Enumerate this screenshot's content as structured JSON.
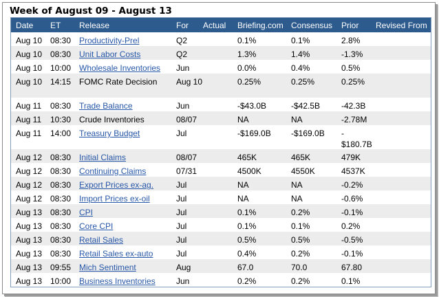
{
  "title": "Week of August 09 - August 13",
  "headers": {
    "date": "Date",
    "et": "ET",
    "release": "Release",
    "for": "For",
    "actual": "Actual",
    "briefing": "Briefing.com",
    "consensus": "Consensus",
    "prior": "Prior",
    "revised": "Revised From"
  },
  "rows": [
    {
      "date": "Aug 10",
      "et": "08:30",
      "release": "Productivity-Prel",
      "link": true,
      "for": "Q2",
      "actual": "",
      "briefing": "0.1%",
      "consensus": "0.1%",
      "prior": "2.8%",
      "revised": ""
    },
    {
      "date": "Aug 10",
      "et": "08:30",
      "release": "Unit Labor Costs",
      "link": true,
      "for": "Q2",
      "actual": "",
      "briefing": "1.3%",
      "consensus": "1.4%",
      "prior": "-1.3%",
      "revised": ""
    },
    {
      "date": "Aug 10",
      "et": "10:00",
      "release": "Wholesale Inventories",
      "link": true,
      "for": "Jun",
      "actual": "",
      "briefing": "0.0%",
      "consensus": "0.4%",
      "prior": "0.5%",
      "revised": ""
    },
    {
      "date": "Aug 10",
      "et": "14:15",
      "release": "FOMC Rate Decision",
      "link": false,
      "for": "Aug 10",
      "actual": "",
      "briefing": "0.25%",
      "consensus": "0.25%",
      "prior": "0.25%",
      "revised": ""
    },
    {
      "date": "Aug 11",
      "et": "08:30",
      "release": "Trade Balance",
      "link": true,
      "for": "Jun",
      "actual": "",
      "briefing": "-$43.0B",
      "consensus": "-$42.5B",
      "prior": "-42.3B",
      "revised": ""
    },
    {
      "date": "Aug 11",
      "et": "10:30",
      "release": "Crude Inventories",
      "link": false,
      "for": "08/07",
      "actual": "",
      "briefing": "NA",
      "consensus": "NA",
      "prior": "-2.78M",
      "revised": ""
    },
    {
      "date": "Aug 11",
      "et": "14:00",
      "release": "Treasury Budget",
      "link": true,
      "for": "Jul",
      "actual": "",
      "briefing": "-$169.0B",
      "consensus": "-$169.0B",
      "prior": "- $180.7B",
      "revised": ""
    },
    {
      "date": "Aug 12",
      "et": "08:30",
      "release": "Initial Claims",
      "link": true,
      "for": "08/07",
      "actual": "",
      "briefing": "465K",
      "consensus": "465K",
      "prior": "479K",
      "revised": ""
    },
    {
      "date": "Aug 12",
      "et": "08:30",
      "release": "Continuing Claims",
      "link": true,
      "for": "07/31",
      "actual": "",
      "briefing": "4500K",
      "consensus": "4550K",
      "prior": "4537K",
      "revised": ""
    },
    {
      "date": "Aug 12",
      "et": "08:30",
      "release": "Export Prices ex-ag.",
      "link": true,
      "for": "Jul",
      "actual": "",
      "briefing": "NA",
      "consensus": "NA",
      "prior": "-0.2%",
      "revised": ""
    },
    {
      "date": "Aug 12",
      "et": "08:30",
      "release": "Import Prices ex-oil",
      "link": true,
      "for": "Jul",
      "actual": "",
      "briefing": "NA",
      "consensus": "NA",
      "prior": "-0.6%",
      "revised": ""
    },
    {
      "date": "Aug 13",
      "et": "08:30",
      "release": "CPI",
      "link": true,
      "for": "Jul",
      "actual": "",
      "briefing": "0.1%",
      "consensus": "0.2%",
      "prior": "-0.1%",
      "revised": ""
    },
    {
      "date": "Aug 13",
      "et": "08:30",
      "release": "Core CPI",
      "link": true,
      "for": "Jul",
      "actual": "",
      "briefing": "0.1%",
      "consensus": "0.1%",
      "prior": "0.2%",
      "revised": ""
    },
    {
      "date": "Aug 13",
      "et": "08:30",
      "release": "Retail Sales",
      "link": true,
      "for": "Jul",
      "actual": "",
      "briefing": "0.5%",
      "consensus": "0.5%",
      "prior": "-0.5%",
      "revised": ""
    },
    {
      "date": "Aug 13",
      "et": "08:30",
      "release": "Retail Sales ex-auto",
      "link": true,
      "for": "Jul",
      "actual": "",
      "briefing": "0.4%",
      "consensus": "0.2%",
      "prior": "-0.1%",
      "revised": ""
    },
    {
      "date": "Aug 13",
      "et": "09:55",
      "release": "Mich Sentiment",
      "link": true,
      "for": "Aug",
      "actual": "",
      "briefing": "67.0",
      "consensus": "70.0",
      "prior": "67.80",
      "revised": ""
    },
    {
      "date": "Aug 13",
      "et": "10:00",
      "release": "Business Inventories",
      "link": true,
      "for": "Jun",
      "actual": "",
      "briefing": "0.2%",
      "consensus": "0.2%",
      "prior": "0.1%",
      "revised": ""
    }
  ]
}
